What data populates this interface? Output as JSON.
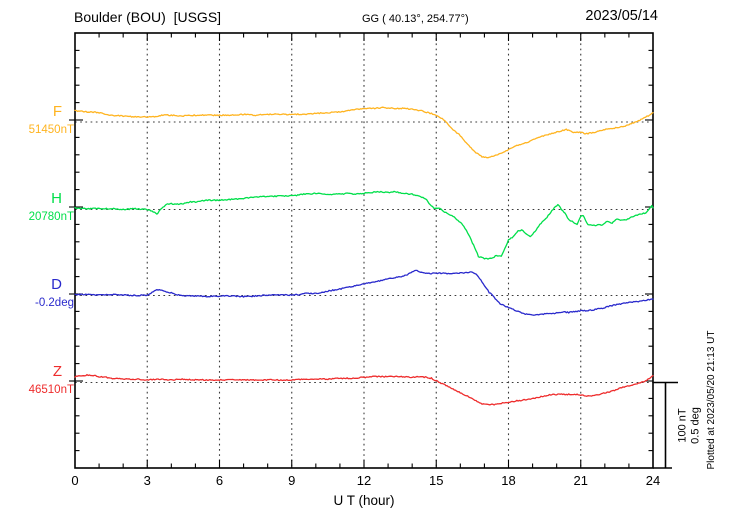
{
  "header": {
    "station": "Boulder (BOU)  [USGS]",
    "coords": "GG ( 40.13°, 254.77°)",
    "date": "2023/05/14"
  },
  "axis": {
    "x_label": "U T (hour)"
  },
  "scale_bar": {
    "line1": "100 nT",
    "line2": "0.5 deg"
  },
  "plotted_at": "Plotted at 2023/05/20 21:13 UT",
  "colors": {
    "F": "#ffb420",
    "H": "#00df4a",
    "D": "#2a2acc",
    "Z": "#ee2c2c"
  },
  "chart_data": {
    "type": "line",
    "title": "Boulder (BOU) [USGS] magnetogram, 2023/05/14",
    "xlabel": "U T (hour)",
    "xlim": [
      0,
      24
    ],
    "x_ticks": [
      0,
      3,
      6,
      9,
      12,
      15,
      18,
      21,
      24
    ],
    "grid": "dotted vertical lines every 3 h; dotted horizontal line at each trace baseline",
    "legend_position": "left margin, one label per trace",
    "scale": {
      "per_division": "100 nT / 0.5 deg",
      "nT_per_division": 100,
      "deg_per_division": 0.5
    },
    "series": [
      {
        "name": "F",
        "unit": "nT",
        "baseline": 51450,
        "baseline_label": "51450nT",
        "color": "#ffb420",
        "points": [
          [
            0,
            51463
          ],
          [
            0.5,
            51462
          ],
          [
            1,
            51461
          ],
          [
            1.5,
            51458
          ],
          [
            2,
            51457
          ],
          [
            2.5,
            51456
          ],
          [
            3,
            51456
          ],
          [
            3.3,
            51456
          ],
          [
            3.6,
            51458
          ],
          [
            4,
            51458
          ],
          [
            4.5,
            51457
          ],
          [
            5,
            51458
          ],
          [
            5.5,
            51458
          ],
          [
            6,
            51458
          ],
          [
            6.5,
            51458
          ],
          [
            7,
            51459
          ],
          [
            7.5,
            51458
          ],
          [
            8,
            51459
          ],
          [
            8.5,
            51459
          ],
          [
            9,
            51459
          ],
          [
            9.5,
            51459
          ],
          [
            10,
            51460
          ],
          [
            10.5,
            51461
          ],
          [
            11,
            51462
          ],
          [
            11.5,
            51464
          ],
          [
            12,
            51466
          ],
          [
            12.4,
            51466
          ],
          [
            12.8,
            51467
          ],
          [
            13.2,
            51466
          ],
          [
            13.6,
            51466
          ],
          [
            14,
            51465
          ],
          [
            14.4,
            51463
          ],
          [
            14.8,
            51460
          ],
          [
            15,
            51458
          ],
          [
            15.2,
            51455
          ],
          [
            15.4,
            51450
          ],
          [
            15.7,
            51441
          ],
          [
            16,
            51434
          ],
          [
            16.3,
            51424
          ],
          [
            16.6,
            51415
          ],
          [
            16.9,
            51409
          ],
          [
            17.1,
            51408
          ],
          [
            17.3,
            51409
          ],
          [
            17.5,
            51411
          ],
          [
            17.8,
            51414
          ],
          [
            18,
            51418
          ],
          [
            18.3,
            51422
          ],
          [
            18.6,
            51424
          ],
          [
            19,
            51429
          ],
          [
            19.3,
            51432
          ],
          [
            19.6,
            51435
          ],
          [
            19.9,
            51437
          ],
          [
            20.1,
            51439
          ],
          [
            20.4,
            51441
          ],
          [
            20.7,
            51438
          ],
          [
            21,
            51438
          ],
          [
            21.2,
            51436
          ],
          [
            21.4,
            51437
          ],
          [
            21.6,
            51438
          ],
          [
            22,
            51441
          ],
          [
            22.4,
            51443
          ],
          [
            22.8,
            51445
          ],
          [
            23.2,
            51449
          ],
          [
            23.6,
            51454
          ],
          [
            23.9,
            51459
          ],
          [
            24,
            51461
          ]
        ]
      },
      {
        "name": "H",
        "unit": "nT",
        "baseline": 20780,
        "baseline_label": "20780nT",
        "color": "#00df4a",
        "points": [
          [
            0,
            20782
          ],
          [
            0.5,
            20781
          ],
          [
            1,
            20781
          ],
          [
            1.5,
            20781
          ],
          [
            2,
            20780
          ],
          [
            2.5,
            20781
          ],
          [
            3,
            20780
          ],
          [
            3.2,
            20778
          ],
          [
            3.4,
            20775
          ],
          [
            3.6,
            20781
          ],
          [
            3.8,
            20786
          ],
          [
            4,
            20787
          ],
          [
            4.2,
            20786
          ],
          [
            4.5,
            20787
          ],
          [
            4.8,
            20789
          ],
          [
            5,
            20789
          ],
          [
            5.5,
            20791
          ],
          [
            6,
            20791
          ],
          [
            6.5,
            20792
          ],
          [
            7,
            20793
          ],
          [
            7.5,
            20795
          ],
          [
            8,
            20795
          ],
          [
            8.5,
            20796
          ],
          [
            9,
            20796
          ],
          [
            9.5,
            20798
          ],
          [
            10,
            20799
          ],
          [
            10.5,
            20798
          ],
          [
            11,
            20798
          ],
          [
            11.3,
            20799
          ],
          [
            11.6,
            20798
          ],
          [
            12,
            20799
          ],
          [
            12.3,
            20800
          ],
          [
            12.6,
            20801
          ],
          [
            13,
            20800
          ],
          [
            13.3,
            20801
          ],
          [
            13.6,
            20799
          ],
          [
            14,
            20798
          ],
          [
            14.3,
            20796
          ],
          [
            14.6,
            20792
          ],
          [
            14.75,
            20785
          ],
          [
            14.9,
            20782
          ],
          [
            15.1,
            20782
          ],
          [
            15.3,
            20778
          ],
          [
            15.5,
            20775
          ],
          [
            15.7,
            20772
          ],
          [
            16,
            20765
          ],
          [
            16.2,
            20758
          ],
          [
            16.4,
            20747
          ],
          [
            16.6,
            20735
          ],
          [
            16.75,
            20725
          ],
          [
            17,
            20722
          ],
          [
            17.2,
            20722
          ],
          [
            17.4,
            20724
          ],
          [
            17.5,
            20726
          ],
          [
            17.7,
            20725
          ],
          [
            17.8,
            20731
          ],
          [
            18,
            20744
          ],
          [
            18.2,
            20748
          ],
          [
            18.4,
            20755
          ],
          [
            18.55,
            20756
          ],
          [
            18.7,
            20752
          ],
          [
            18.9,
            20748
          ],
          [
            19.1,
            20754
          ],
          [
            19.3,
            20762
          ],
          [
            19.6,
            20771
          ],
          [
            19.9,
            20782
          ],
          [
            20.05,
            20786
          ],
          [
            20.2,
            20780
          ],
          [
            20.35,
            20775
          ],
          [
            20.5,
            20768
          ],
          [
            20.7,
            20765
          ],
          [
            20.85,
            20762
          ],
          [
            21,
            20772
          ],
          [
            21.1,
            20773
          ],
          [
            21.3,
            20762
          ],
          [
            21.5,
            20761
          ],
          [
            21.7,
            20762
          ],
          [
            21.9,
            20762
          ],
          [
            22.1,
            20766
          ],
          [
            22.3,
            20764
          ],
          [
            22.5,
            20769
          ],
          [
            22.7,
            20767
          ],
          [
            22.9,
            20768
          ],
          [
            23.1,
            20771
          ],
          [
            23.3,
            20773
          ],
          [
            23.5,
            20775
          ],
          [
            23.7,
            20776
          ],
          [
            23.85,
            20781
          ],
          [
            23.95,
            20785
          ],
          [
            24,
            20782
          ]
        ]
      },
      {
        "name": "D",
        "unit": "deg",
        "baseline": -0.2,
        "baseline_label": "-0.2deg",
        "color": "#2a2acc",
        "points": [
          [
            0,
            -0.194
          ],
          [
            0.5,
            -0.194
          ],
          [
            1,
            -0.197
          ],
          [
            1.5,
            -0.194
          ],
          [
            2,
            -0.197
          ],
          [
            2.5,
            -0.2
          ],
          [
            3,
            -0.197
          ],
          [
            3.2,
            -0.182
          ],
          [
            3.35,
            -0.168
          ],
          [
            3.5,
            -0.165
          ],
          [
            3.7,
            -0.174
          ],
          [
            4,
            -0.185
          ],
          [
            4.2,
            -0.194
          ],
          [
            4.5,
            -0.2
          ],
          [
            5,
            -0.203
          ],
          [
            5.5,
            -0.206
          ],
          [
            6,
            -0.203
          ],
          [
            6.5,
            -0.203
          ],
          [
            7,
            -0.206
          ],
          [
            7.5,
            -0.203
          ],
          [
            8,
            -0.197
          ],
          [
            8.5,
            -0.197
          ],
          [
            9,
            -0.197
          ],
          [
            9.3,
            -0.194
          ],
          [
            9.5,
            -0.188
          ],
          [
            10,
            -0.188
          ],
          [
            10.3,
            -0.179
          ],
          [
            10.5,
            -0.174
          ],
          [
            11,
            -0.162
          ],
          [
            11.5,
            -0.147
          ],
          [
            12,
            -0.132
          ],
          [
            12.5,
            -0.118
          ],
          [
            13,
            -0.103
          ],
          [
            13.3,
            -0.094
          ],
          [
            13.6,
            -0.088
          ],
          [
            13.8,
            -0.077
          ],
          [
            14,
            -0.062
          ],
          [
            14.15,
            -0.053
          ],
          [
            14.3,
            -0.059
          ],
          [
            14.5,
            -0.068
          ],
          [
            14.7,
            -0.071
          ],
          [
            15,
            -0.068
          ],
          [
            15.5,
            -0.071
          ],
          [
            16,
            -0.068
          ],
          [
            16.3,
            -0.065
          ],
          [
            16.5,
            -0.062
          ],
          [
            16.65,
            -0.071
          ],
          [
            16.8,
            -0.1
          ],
          [
            17,
            -0.141
          ],
          [
            17.2,
            -0.182
          ],
          [
            17.35,
            -0.2
          ],
          [
            17.5,
            -0.229
          ],
          [
            17.7,
            -0.253
          ],
          [
            18,
            -0.271
          ],
          [
            18.3,
            -0.288
          ],
          [
            18.5,
            -0.3
          ],
          [
            18.7,
            -0.309
          ],
          [
            19,
            -0.315
          ],
          [
            19.3,
            -0.312
          ],
          [
            19.5,
            -0.309
          ],
          [
            19.8,
            -0.306
          ],
          [
            20,
            -0.303
          ],
          [
            20.3,
            -0.297
          ],
          [
            20.5,
            -0.3
          ],
          [
            20.8,
            -0.294
          ],
          [
            21,
            -0.291
          ],
          [
            21.3,
            -0.288
          ],
          [
            21.5,
            -0.285
          ],
          [
            22,
            -0.271
          ],
          [
            22.3,
            -0.259
          ],
          [
            22.5,
            -0.253
          ],
          [
            23,
            -0.241
          ],
          [
            23.5,
            -0.232
          ],
          [
            24,
            -0.221
          ]
        ]
      },
      {
        "name": "Z",
        "unit": "nT",
        "baseline": 46510,
        "baseline_label": "46510nT",
        "color": "#ee2c2c",
        "points": [
          [
            0,
            46517
          ],
          [
            0.3,
            46518
          ],
          [
            0.5,
            46519
          ],
          [
            0.8,
            46518
          ],
          [
            1,
            46517
          ],
          [
            1.3,
            46516
          ],
          [
            1.5,
            46515
          ],
          [
            2,
            46514
          ],
          [
            2.5,
            46514
          ],
          [
            3,
            46513
          ],
          [
            3.5,
            46514
          ],
          [
            4,
            46513
          ],
          [
            4.5,
            46514
          ],
          [
            5,
            46513
          ],
          [
            6,
            46513
          ],
          [
            7,
            46513
          ],
          [
            8,
            46513
          ],
          [
            9,
            46513
          ],
          [
            9.5,
            46514
          ],
          [
            10,
            46514
          ],
          [
            10.5,
            46514
          ],
          [
            11,
            46515
          ],
          [
            11.5,
            46515
          ],
          [
            12,
            46516
          ],
          [
            12.5,
            46517
          ],
          [
            13,
            46517
          ],
          [
            13.5,
            46517
          ],
          [
            14,
            46516
          ],
          [
            14.3,
            46517
          ],
          [
            14.6,
            46516
          ],
          [
            14.8,
            46515
          ],
          [
            15,
            46512
          ],
          [
            15.3,
            46508
          ],
          [
            15.6,
            46504
          ],
          [
            16,
            46498
          ],
          [
            16.3,
            46494
          ],
          [
            16.6,
            46489
          ],
          [
            16.9,
            46485
          ],
          [
            17.1,
            46484
          ],
          [
            17.4,
            46484
          ],
          [
            17.6,
            46485
          ],
          [
            18,
            46487
          ],
          [
            18.5,
            46489
          ],
          [
            19,
            46491
          ],
          [
            19.3,
            46493
          ],
          [
            19.6,
            46495
          ],
          [
            19.9,
            46496
          ],
          [
            20.2,
            46496
          ],
          [
            20.5,
            46496
          ],
          [
            20.8,
            46496
          ],
          [
            21,
            46495
          ],
          [
            21.3,
            46494
          ],
          [
            21.6,
            46495
          ],
          [
            21.9,
            46497
          ],
          [
            22.2,
            46499
          ],
          [
            22.5,
            46502
          ],
          [
            22.8,
            46505
          ],
          [
            23.1,
            46507
          ],
          [
            23.4,
            46509
          ],
          [
            23.7,
            46512
          ],
          [
            23.9,
            46516
          ],
          [
            24,
            46518
          ]
        ]
      }
    ]
  }
}
